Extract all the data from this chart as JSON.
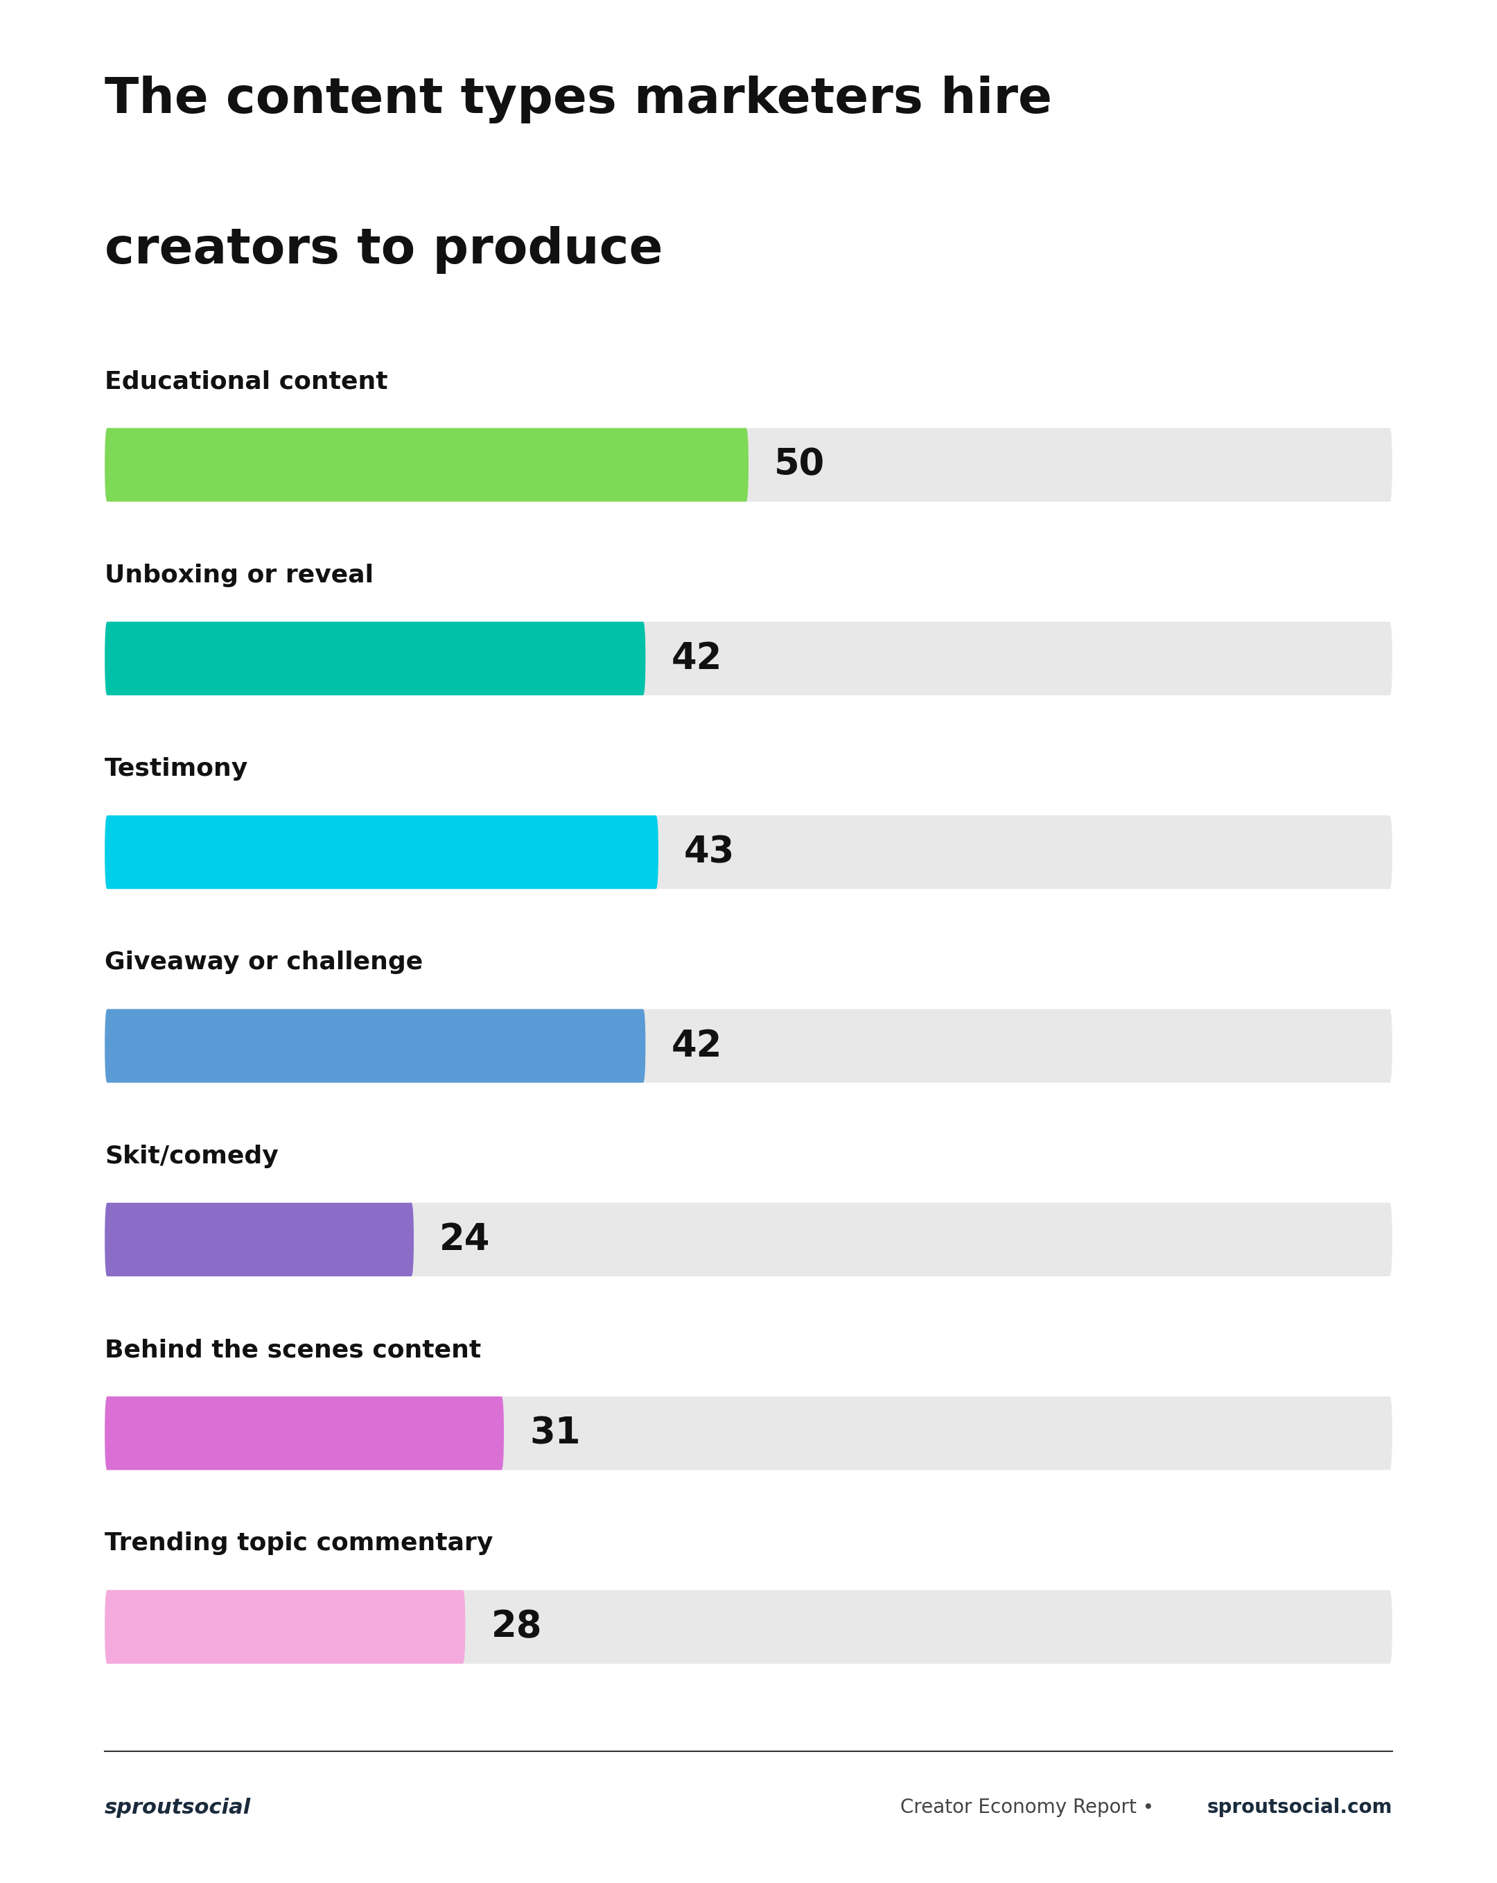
{
  "title_line1": "The content types marketers hire",
  "title_line2": "creators to produce",
  "categories": [
    "Educational content",
    "Unboxing or reveal",
    "Testimony",
    "Giveaway or challenge",
    "Skit/comedy",
    "Behind the scenes content",
    "Trending topic commentary"
  ],
  "values": [
    50,
    42,
    43,
    42,
    24,
    31,
    28
  ],
  "bar_colors": [
    "#7ED957",
    "#00C2A8",
    "#00CFEA",
    "#5B9BD5",
    "#8B6DC8",
    "#DA70D6",
    "#F4AADC"
  ],
  "max_value": 100,
  "background_color": "#FFFFFF",
  "bar_bg_color": "#E8E8E8",
  "label_color": "#111111",
  "value_color": "#111111",
  "footer_left": "sproutsocial",
  "footer_right_normal": "Creator Economy Report • ",
  "footer_right_bold": "sproutsocial.com",
  "footer_line_color": "#333333",
  "title_fontsize": 52,
  "category_fontsize": 26,
  "value_fontsize": 38,
  "pct_fontsize": 22,
  "footer_fontsize": 20
}
